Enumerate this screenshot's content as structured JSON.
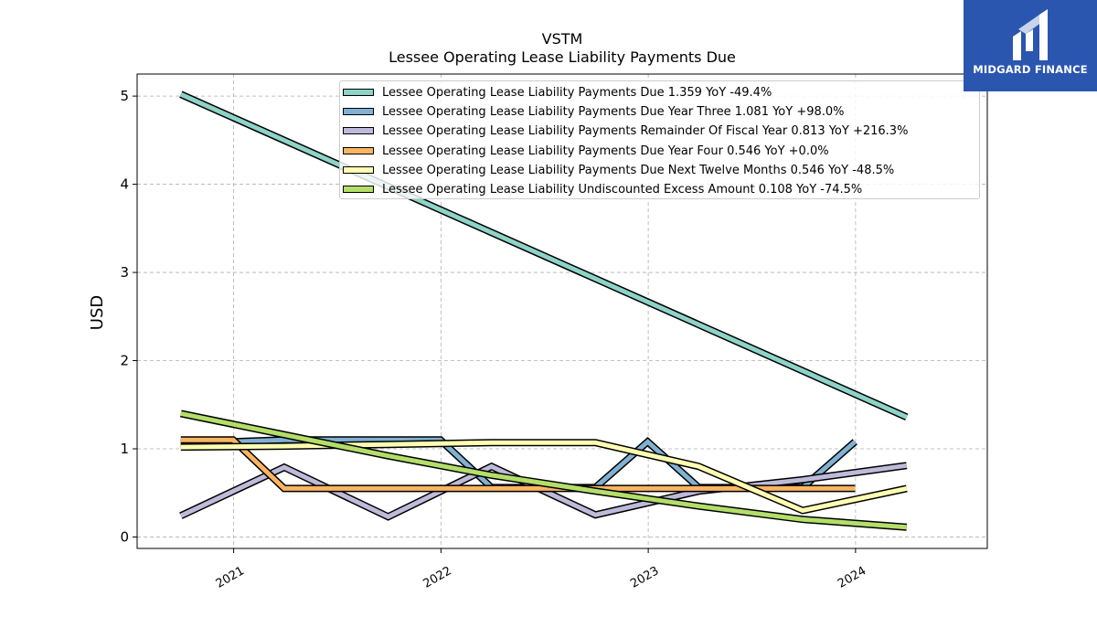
{
  "chart_data": {
    "type": "line",
    "title": "VSTM",
    "subtitle": "Lessee Operating Lease Liability Payments Due",
    "ylabel": "USD",
    "xlabel": "",
    "ylim": [
      -0.13,
      5.25
    ],
    "xlim": [
      "2020-07-15",
      "2024-08-20"
    ],
    "grid": true,
    "legend_position": "top-right",
    "x_ticks": [
      "2021",
      "2022",
      "2023",
      "2024"
    ],
    "y_ticks": [
      0,
      1,
      2,
      3,
      4,
      5
    ],
    "series": [
      {
        "name": "Lessee Operating Lease Liability Payments Due",
        "legend_label": "Lessee Operating Lease Liability Payments Due  1.359 YoY -49.4%",
        "color": "#8dd3c7",
        "x": [
          "2020-09-30",
          "2024-03-31"
        ],
        "y": [
          5.02,
          1.36
        ]
      },
      {
        "name": "Lessee Operating Lease Liability Payments Due Year Three",
        "legend_label": "Lessee Operating Lease Liability Payments Due Year Three  1.081 YoY +98.0%",
        "color": "#80b1d3",
        "x": [
          "2020-09-30",
          "2020-12-31",
          "2021-03-31",
          "2021-06-30",
          "2021-09-30",
          "2021-12-31",
          "2022-03-31",
          "2022-06-30",
          "2022-09-30",
          "2022-12-31",
          "2023-03-31",
          "2023-06-30",
          "2023-09-30",
          "2023-12-31"
        ],
        "y": [
          1.06,
          1.08,
          1.1,
          1.1,
          1.1,
          1.1,
          0.56,
          0.56,
          0.56,
          1.08,
          0.56,
          0.56,
          0.56,
          1.08
        ]
      },
      {
        "name": "Lessee Operating Lease Liability Payments Remainder Of Fiscal Year",
        "legend_label": "Lessee Operating Lease Liability Payments Remainder Of Fiscal Year  0.813 YoY +216.3%",
        "color": "#bebada",
        "x": [
          "2020-09-30",
          "2021-03-31",
          "2021-09-30",
          "2022-03-31",
          "2022-09-30",
          "2023-03-31",
          "2023-09-30",
          "2024-03-31"
        ],
        "y": [
          0.24,
          0.79,
          0.23,
          0.8,
          0.25,
          0.52,
          0.65,
          0.81
        ]
      },
      {
        "name": "Lessee Operating Lease Liability Payments Due Year Four",
        "legend_label": "Lessee Operating Lease Liability Payments Due Year Four  0.546 YoY +0.0%",
        "color": "#fdb462",
        "x": [
          "2020-09-30",
          "2020-12-31",
          "2021-03-31",
          "2021-06-30",
          "2021-09-30",
          "2021-12-31",
          "2022-03-31",
          "2022-06-30",
          "2022-09-30",
          "2022-12-31",
          "2023-03-31",
          "2023-06-30",
          "2023-09-30",
          "2023-12-31"
        ],
        "y": [
          1.1,
          1.1,
          0.55,
          0.55,
          0.55,
          0.55,
          0.55,
          0.55,
          0.55,
          0.55,
          0.55,
          0.55,
          0.55,
          0.55
        ]
      },
      {
        "name": "Lessee Operating Lease Liability Payments Due Next Twelve Months",
        "legend_label": "Lessee Operating Lease Liability Payments Due Next Twelve Months  0.546 YoY -48.5%",
        "color": "#ffffb3",
        "x": [
          "2020-09-30",
          "2021-03-31",
          "2021-09-30",
          "2022-03-31",
          "2022-09-30",
          "2023-03-31",
          "2023-09-30",
          "2024-03-31"
        ],
        "y": [
          1.02,
          1.03,
          1.05,
          1.07,
          1.07,
          0.8,
          0.3,
          0.55
        ]
      },
      {
        "name": "Lessee Operating Lease Liability Undiscounted Excess Amount",
        "legend_label": "Lessee Operating Lease Liability Undiscounted Excess Amount  0.108 YoY -74.5%",
        "color": "#b3de69",
        "x": [
          "2020-09-30",
          "2021-03-31",
          "2021-09-30",
          "2022-03-31",
          "2022-09-30",
          "2023-03-31",
          "2023-09-30",
          "2024-03-31"
        ],
        "y": [
          1.4,
          1.16,
          0.92,
          0.7,
          0.52,
          0.35,
          0.2,
          0.11
        ]
      }
    ]
  },
  "logo": {
    "text": "MIDGARD FINANCE",
    "background": "#2a56b0"
  }
}
